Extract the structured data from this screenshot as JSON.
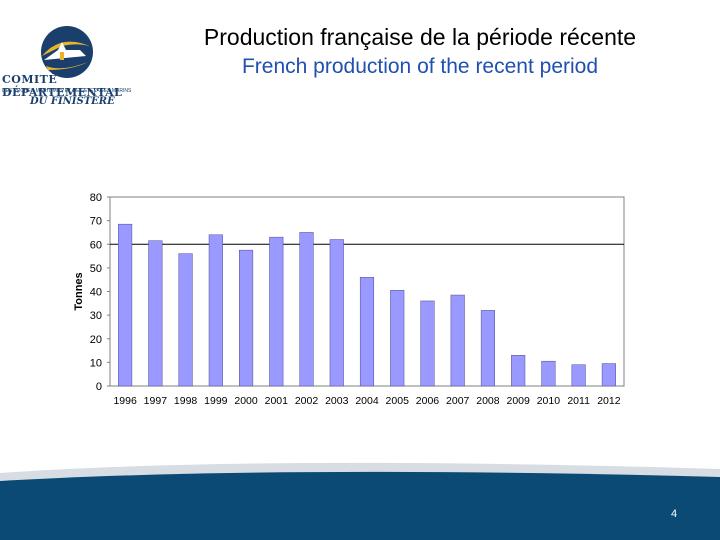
{
  "header": {
    "logo": {
      "line1": "COMITÉ DÉPARTEMENTAL",
      "line2": "DES PÊCHES MARITIMES ET DES ÉLEVAGES MARINS",
      "line3": "DU FINISTÈRE",
      "colors": {
        "navy": "#1a3f6d",
        "gold": "#e8b52a",
        "white": "#ffffff"
      }
    },
    "title_fr": "Production française de la période récente",
    "title_en": "French production of the recent period"
  },
  "chart_data": {
    "type": "bar",
    "categories": [
      "1996",
      "1997",
      "1998",
      "1999",
      "2000",
      "2001",
      "2002",
      "2003",
      "2004",
      "2005",
      "2006",
      "2007",
      "2008",
      "2009",
      "2010",
      "2011",
      "2012"
    ],
    "values": [
      68.5,
      61.5,
      56,
      64,
      57.5,
      63,
      65,
      62,
      46,
      40.5,
      36,
      38.5,
      32,
      13,
      10.5,
      9,
      9.5
    ],
    "ylabel": "Tonnes",
    "xlabel": "",
    "ylim": [
      0,
      80
    ],
    "yticks": [
      0,
      10,
      20,
      30,
      40,
      50,
      60,
      70,
      80
    ],
    "reference_line": 60,
    "grid": false,
    "colors": {
      "bar": "#9999ff",
      "bar_edge": "#4a4a90",
      "plot_bg": "#ffffff",
      "frame": "#808080"
    }
  },
  "footer": {
    "page_number": "4",
    "colors": {
      "navy": "#0b4a74",
      "swoosh": "#d7dde3"
    }
  }
}
